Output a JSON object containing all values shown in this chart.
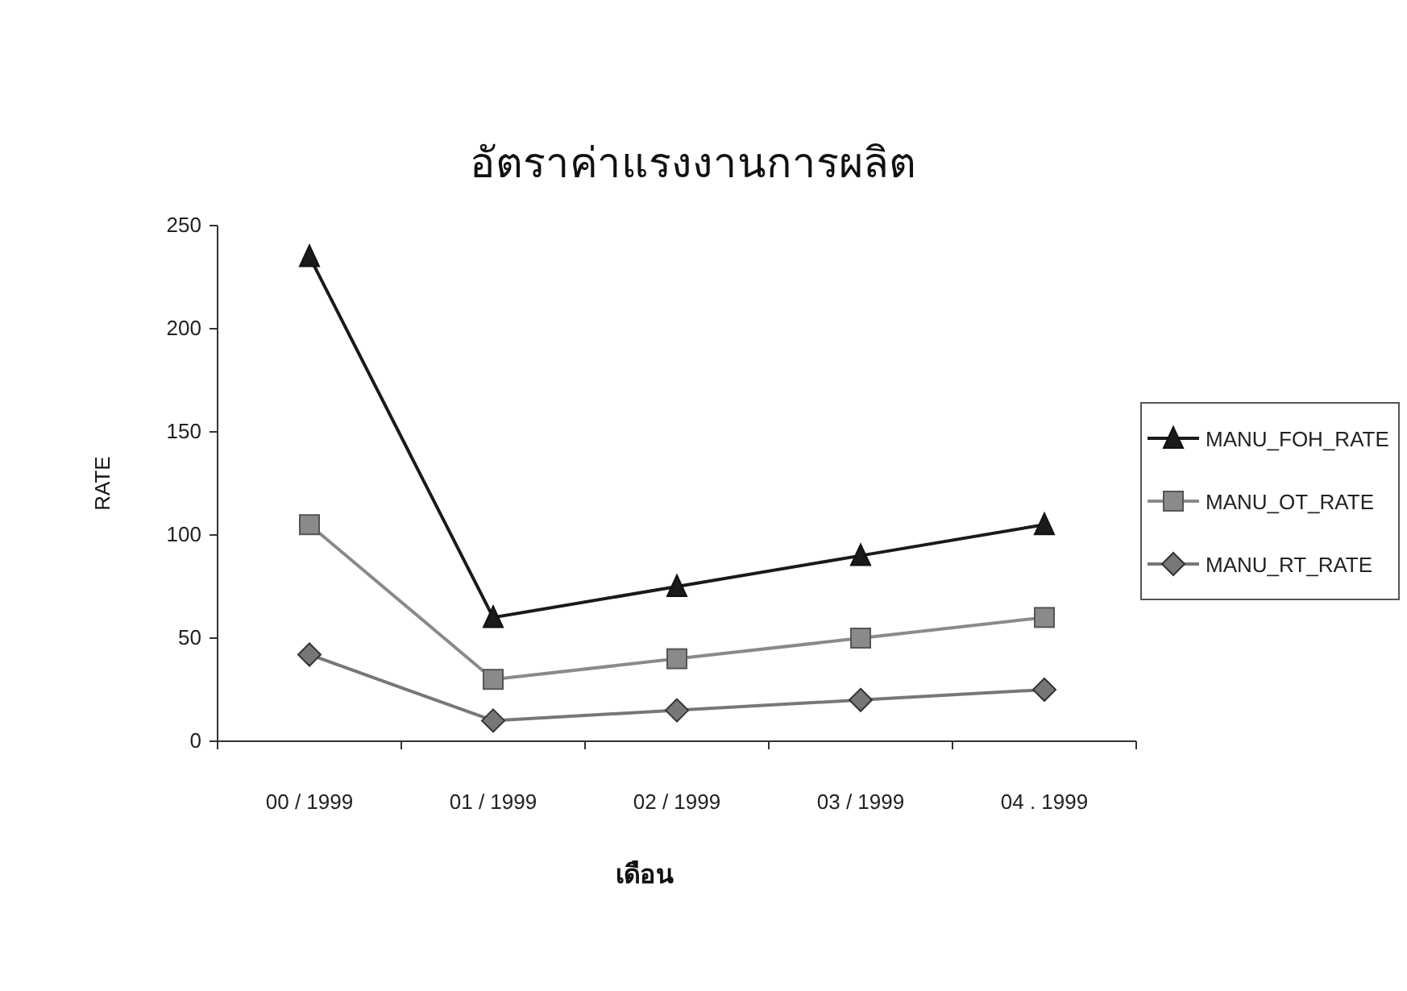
{
  "chart_data": {
    "type": "line",
    "title": "อัตราค่าแรงงานการผลิต",
    "xlabel": "เดือน",
    "ylabel": "RATE",
    "categories": [
      "00 / 1999",
      "01 / 1999",
      "02 / 1999",
      "03 / 1999",
      "04 . 1999"
    ],
    "series": [
      {
        "name": "MANU_FOH_RATE",
        "color": "#1a1a1a",
        "marker": "triangle",
        "values": [
          235,
          60,
          75,
          90,
          105
        ]
      },
      {
        "name": "MANU_OT_RATE",
        "color": "#8a8a8a",
        "marker": "square",
        "values": [
          105,
          30,
          40,
          50,
          60
        ]
      },
      {
        "name": "MANU_RT_RATE",
        "color": "#777777",
        "marker": "diamond",
        "values": [
          42,
          10,
          15,
          20,
          25
        ]
      }
    ],
    "ylim": [
      0,
      250
    ],
    "yticks": [
      0,
      50,
      100,
      150,
      200,
      250
    ],
    "grid": false,
    "legend": "right",
    "line_style": "solid"
  }
}
